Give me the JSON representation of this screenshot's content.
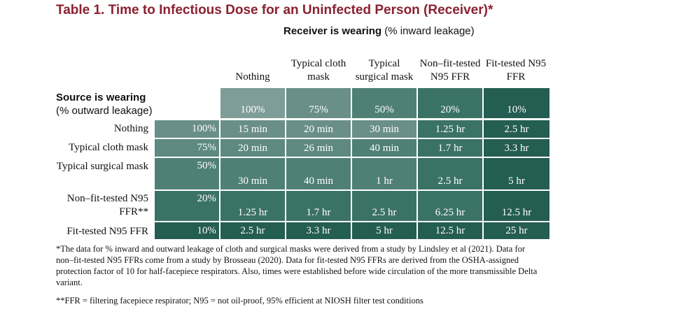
{
  "title": "Table 1. Time to Infectious Dose for an Uninfected Person (Receiver)*",
  "receiver_header": {
    "bold": "Receiver is wearing",
    "normal": "(% inward leakage)"
  },
  "source_header": {
    "bold": "Source is wearing",
    "normal": "(% outward leakage)"
  },
  "columns": [
    {
      "label": "Nothing",
      "pct": "100%"
    },
    {
      "label": "Typical cloth mask",
      "pct": "75%"
    },
    {
      "label": "Typical surgical mask",
      "pct": "50%"
    },
    {
      "label": "Non–fit-tested N95 FFR",
      "pct": "20%"
    },
    {
      "label": "Fit-tested N95 FFR",
      "pct": "10%"
    }
  ],
  "rows": [
    {
      "label": "Nothing",
      "pct": "100%",
      "values": [
        "15 min",
        "20 min",
        "30 min",
        "1.25 hr",
        "2.5 hr"
      ]
    },
    {
      "label": "Typical cloth mask",
      "pct": "75%",
      "values": [
        "20 min",
        "26 min",
        "40 min",
        "1.7 hr",
        "3.3 hr"
      ]
    },
    {
      "label": "Typical surgical mask",
      "pct": "50%",
      "values": [
        "30 min",
        "40 min",
        "1 hr",
        "2.5 hr",
        "5 hr"
      ]
    },
    {
      "label": "Non–fit-tested N95 FFR**",
      "pct": "20%",
      "values": [
        "1.25 hr",
        "1.7 hr",
        "2.5 hr",
        "6.25 hr",
        "12.5 hr"
      ]
    },
    {
      "label": "Fit-tested N95 FFR",
      "pct": "10%",
      "values": [
        "2.5 hr",
        "3.3 hr",
        "5 hr",
        "12.5 hr",
        "25 hr"
      ]
    }
  ],
  "footnotes": [
    "*The data for % inward and outward leakage of cloth and surgical masks were derived from a study by Lindsley et al (2021). Data for non–fit-tested N95 FFRs come from a study by Brosseau (2020). Data for fit-tested N95 FFRs are derived from the OSHA-assigned protection factor of 10 for half-facepiece respirators. Also, times were established before wide circulation of the more transmissible Delta variant.",
    "**FFR = filtering facepiece respirator; N95 = not oil-proof, 95% efficient at NIOSH filter test conditions"
  ],
  "colors": {
    "title": "#8b2131",
    "col_shades": [
      "#7f9d98",
      "#6a8f88",
      "#4f8076",
      "#3b7266",
      "#245d52"
    ],
    "row_shades": [
      "#6a8f88",
      "#5d8980",
      "#4f8076",
      "#3b7266",
      "#245d52"
    ]
  }
}
